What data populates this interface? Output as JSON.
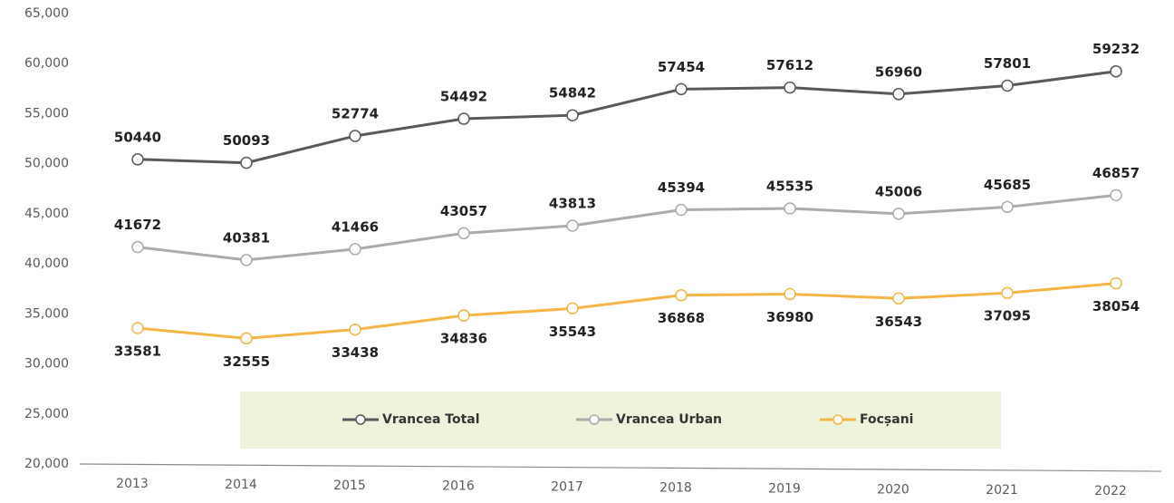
{
  "chart_data": {
    "type": "line",
    "categories": [
      "2013",
      "2014",
      "2015",
      "2016",
      "2017",
      "2018",
      "2019",
      "2020",
      "2021",
      "2022"
    ],
    "series": [
      {
        "name": "Vrancea Total",
        "color": "#595959",
        "values": [
          50440,
          50093,
          52774,
          54492,
          54842,
          57454,
          57612,
          56960,
          57801,
          59232
        ]
      },
      {
        "name": "Vrancea Urban",
        "color": "#ababab",
        "values": [
          41672,
          40381,
          41466,
          43057,
          43813,
          45394,
          45535,
          45006,
          45685,
          46857
        ]
      },
      {
        "name": "Focșani",
        "color": "#f4b544",
        "values": [
          33581,
          32555,
          33438,
          34836,
          35543,
          36868,
          36980,
          36543,
          37095,
          38054
        ]
      }
    ],
    "ylim": [
      20000,
      65000
    ],
    "yticks": [
      {
        "value": 20000,
        "label": "20,000"
      },
      {
        "value": 25000,
        "label": "25,000"
      },
      {
        "value": 30000,
        "label": "30,000"
      },
      {
        "value": 35000,
        "label": "35,000"
      },
      {
        "value": 40000,
        "label": "40,000"
      },
      {
        "value": 45000,
        "label": "45,000"
      },
      {
        "value": 50000,
        "label": "50,000"
      },
      {
        "value": 55000,
        "label": "55,000"
      },
      {
        "value": 60000,
        "label": "60,000"
      },
      {
        "value": 65000,
        "label": "65,000"
      }
    ]
  }
}
